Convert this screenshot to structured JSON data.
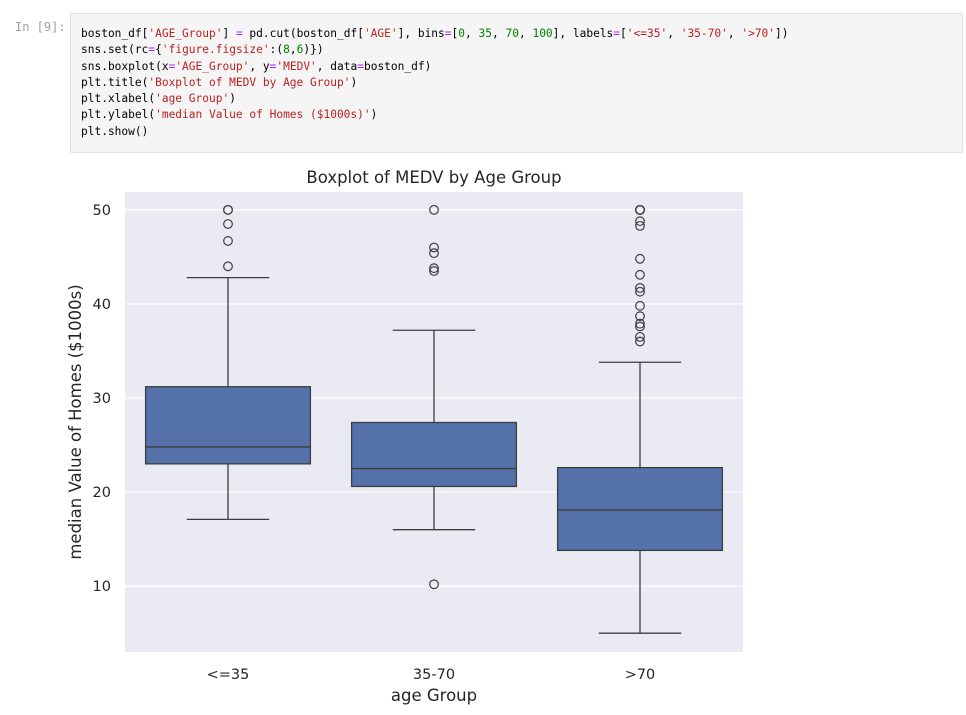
{
  "prompt_label": "In [9]:",
  "code_lines": [
    [
      {
        "t": "boston_df[",
        "c": "plain"
      },
      {
        "t": "'AGE_Group'",
        "c": "str"
      },
      {
        "t": "] ",
        "c": "plain"
      },
      {
        "t": "=",
        "c": "op"
      },
      {
        "t": " pd.cut(boston_df[",
        "c": "plain"
      },
      {
        "t": "'AGE'",
        "c": "str"
      },
      {
        "t": "], bins",
        "c": "plain"
      },
      {
        "t": "=",
        "c": "op"
      },
      {
        "t": "[",
        "c": "plain"
      },
      {
        "t": "0",
        "c": "num"
      },
      {
        "t": ", ",
        "c": "plain"
      },
      {
        "t": "35",
        "c": "num"
      },
      {
        "t": ", ",
        "c": "plain"
      },
      {
        "t": "70",
        "c": "num"
      },
      {
        "t": ", ",
        "c": "plain"
      },
      {
        "t": "100",
        "c": "num"
      },
      {
        "t": "], labels",
        "c": "plain"
      },
      {
        "t": "=",
        "c": "op"
      },
      {
        "t": "[",
        "c": "plain"
      },
      {
        "t": "'<=35'",
        "c": "str"
      },
      {
        "t": ", ",
        "c": "plain"
      },
      {
        "t": "'35-70'",
        "c": "str"
      },
      {
        "t": ", ",
        "c": "plain"
      },
      {
        "t": "'>70'",
        "c": "str"
      },
      {
        "t": "])",
        "c": "plain"
      }
    ],
    [
      {
        "t": "sns.set(rc",
        "c": "plain"
      },
      {
        "t": "=",
        "c": "op"
      },
      {
        "t": "{",
        "c": "plain"
      },
      {
        "t": "'figure.figsize'",
        "c": "str"
      },
      {
        "t": ":(",
        "c": "plain"
      },
      {
        "t": "8",
        "c": "num"
      },
      {
        "t": ",",
        "c": "plain"
      },
      {
        "t": "6",
        "c": "num"
      },
      {
        "t": ")})",
        "c": "plain"
      }
    ],
    [
      {
        "t": "sns.boxplot(x",
        "c": "plain"
      },
      {
        "t": "=",
        "c": "op"
      },
      {
        "t": "'AGE_Group'",
        "c": "str"
      },
      {
        "t": ", y",
        "c": "plain"
      },
      {
        "t": "=",
        "c": "op"
      },
      {
        "t": "'MEDV'",
        "c": "str"
      },
      {
        "t": ", data",
        "c": "plain"
      },
      {
        "t": "=",
        "c": "op"
      },
      {
        "t": "boston_df)",
        "c": "plain"
      }
    ],
    [
      {
        "t": "plt.title(",
        "c": "plain"
      },
      {
        "t": "'Boxplot of MEDV by Age Group'",
        "c": "str"
      },
      {
        "t": ")",
        "c": "plain"
      }
    ],
    [
      {
        "t": "plt.xlabel(",
        "c": "plain"
      },
      {
        "t": "'age Group'",
        "c": "str"
      },
      {
        "t": ")",
        "c": "plain"
      }
    ],
    [
      {
        "t": "plt.ylabel(",
        "c": "plain"
      },
      {
        "t": "'median Value of Homes ($1000s)'",
        "c": "str"
      },
      {
        "t": ")",
        "c": "plain"
      }
    ],
    [
      {
        "t": "plt.show()",
        "c": "plain"
      }
    ]
  ],
  "colors": {
    "plot_bg": "#eaeaf2",
    "box_fill": "#5471a9",
    "line": "#3d3d3d",
    "grid": "#ffffff",
    "text": "#262626"
  },
  "chart_data": {
    "type": "box",
    "title": "Boxplot of MEDV by Age Group",
    "xlabel": "age Group",
    "ylabel": "median Value of Homes ($1000s)",
    "ylim": [
      3,
      51.9
    ],
    "yticks": [
      10,
      20,
      30,
      40,
      50
    ],
    "grid": true,
    "categories": [
      "<=35",
      "35-70",
      ">70"
    ],
    "boxes": [
      {
        "category": "<=35",
        "whisker_low": 17.1,
        "q1": 23.0,
        "median": 24.8,
        "q3": 31.2,
        "whisker_high": 42.8,
        "outliers": [
          44.0,
          46.7,
          48.5,
          50.0,
          50.0
        ]
      },
      {
        "category": "35-70",
        "whisker_low": 16.0,
        "q1": 20.6,
        "median": 22.5,
        "q3": 27.4,
        "whisker_high": 37.2,
        "outliers": [
          10.2,
          43.5,
          43.8,
          45.4,
          46.0,
          50.0
        ]
      },
      {
        "category": ">70",
        "whisker_low": 5.0,
        "q1": 13.8,
        "median": 18.1,
        "q3": 22.6,
        "whisker_high": 33.8,
        "outliers": [
          36.0,
          36.5,
          37.6,
          37.9,
          38.7,
          39.8,
          41.3,
          41.7,
          43.1,
          44.8,
          48.3,
          48.8,
          50.0,
          50.0,
          50.0,
          50.0
        ]
      }
    ]
  }
}
